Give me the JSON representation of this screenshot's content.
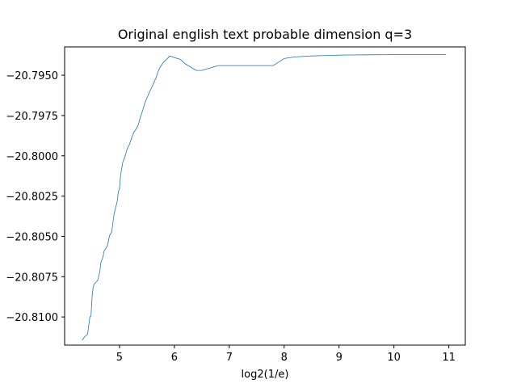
{
  "chart_data": {
    "type": "line",
    "title": "Original english text probable dimension q=3",
    "xlabel": "log2(1/e)",
    "ylabel": "",
    "xlim": [
      4.0,
      11.3
    ],
    "ylim": [
      -20.81175,
      -20.79324
    ],
    "xticks": [
      5,
      6,
      7,
      8,
      9,
      10,
      11
    ],
    "xtick_labels": [
      "5",
      "6",
      "7",
      "8",
      "9",
      "10",
      "11"
    ],
    "yticks": [
      -20.81,
      -20.8075,
      -20.805,
      -20.8025,
      -20.8,
      -20.7975,
      -20.795
    ],
    "ytick_labels": [
      "−20.8100",
      "−20.8075",
      "−20.8050",
      "−20.8025",
      "−20.8000",
      "−20.7975",
      "−20.7950"
    ],
    "grid": false,
    "line_color": "#1f77b4",
    "series": [
      {
        "name": "",
        "x": [
          4.32,
          4.36,
          4.42,
          4.46,
          4.48,
          4.5,
          4.52,
          4.54,
          4.56,
          4.58,
          4.6,
          4.64,
          4.66,
          4.7,
          4.72,
          4.76,
          4.78,
          4.82,
          4.86,
          4.9,
          4.92,
          4.96,
          4.98,
          5.0,
          5.02,
          5.06,
          5.1,
          5.14,
          5.18,
          5.22,
          5.26,
          5.3,
          5.34,
          5.38,
          5.42,
          5.46,
          5.5,
          5.54,
          5.58,
          5.62,
          5.66,
          5.7,
          5.74,
          5.8,
          5.86,
          5.92,
          6.0,
          6.1,
          6.2,
          6.3,
          6.4,
          6.5,
          6.6,
          6.7,
          6.8,
          6.9,
          7.0,
          7.2,
          7.4,
          7.6,
          7.8,
          8.0,
          8.2,
          8.5,
          8.8,
          9.0,
          9.2,
          9.5,
          10.0,
          10.5,
          10.95
        ],
        "y": [
          -20.81145,
          -20.81125,
          -20.81105,
          -20.81,
          -20.80995,
          -20.80875,
          -20.80815,
          -20.80795,
          -20.8079,
          -20.8078,
          -20.80775,
          -20.8072,
          -20.80665,
          -20.80625,
          -20.8059,
          -20.8057,
          -20.80555,
          -20.80495,
          -20.8047,
          -20.8036,
          -20.80335,
          -20.8028,
          -20.8022,
          -20.80205,
          -20.8012,
          -20.8004,
          -20.80005,
          -20.79955,
          -20.7993,
          -20.7989,
          -20.79855,
          -20.79835,
          -20.7981,
          -20.7976,
          -20.7972,
          -20.79675,
          -20.7964,
          -20.7961,
          -20.7958,
          -20.7955,
          -20.7952,
          -20.7948,
          -20.7945,
          -20.7942,
          -20.794,
          -20.7938,
          -20.7939,
          -20.794,
          -20.7943,
          -20.7945,
          -20.7947,
          -20.7947,
          -20.7946,
          -20.7945,
          -20.7944,
          -20.7944,
          -20.7944,
          -20.7944,
          -20.7944,
          -20.7944,
          -20.7944,
          -20.79396,
          -20.79386,
          -20.7938,
          -20.79377,
          -20.79375,
          -20.79374,
          -20.79373,
          -20.79372,
          -20.79372,
          -20.79372
        ]
      }
    ]
  }
}
